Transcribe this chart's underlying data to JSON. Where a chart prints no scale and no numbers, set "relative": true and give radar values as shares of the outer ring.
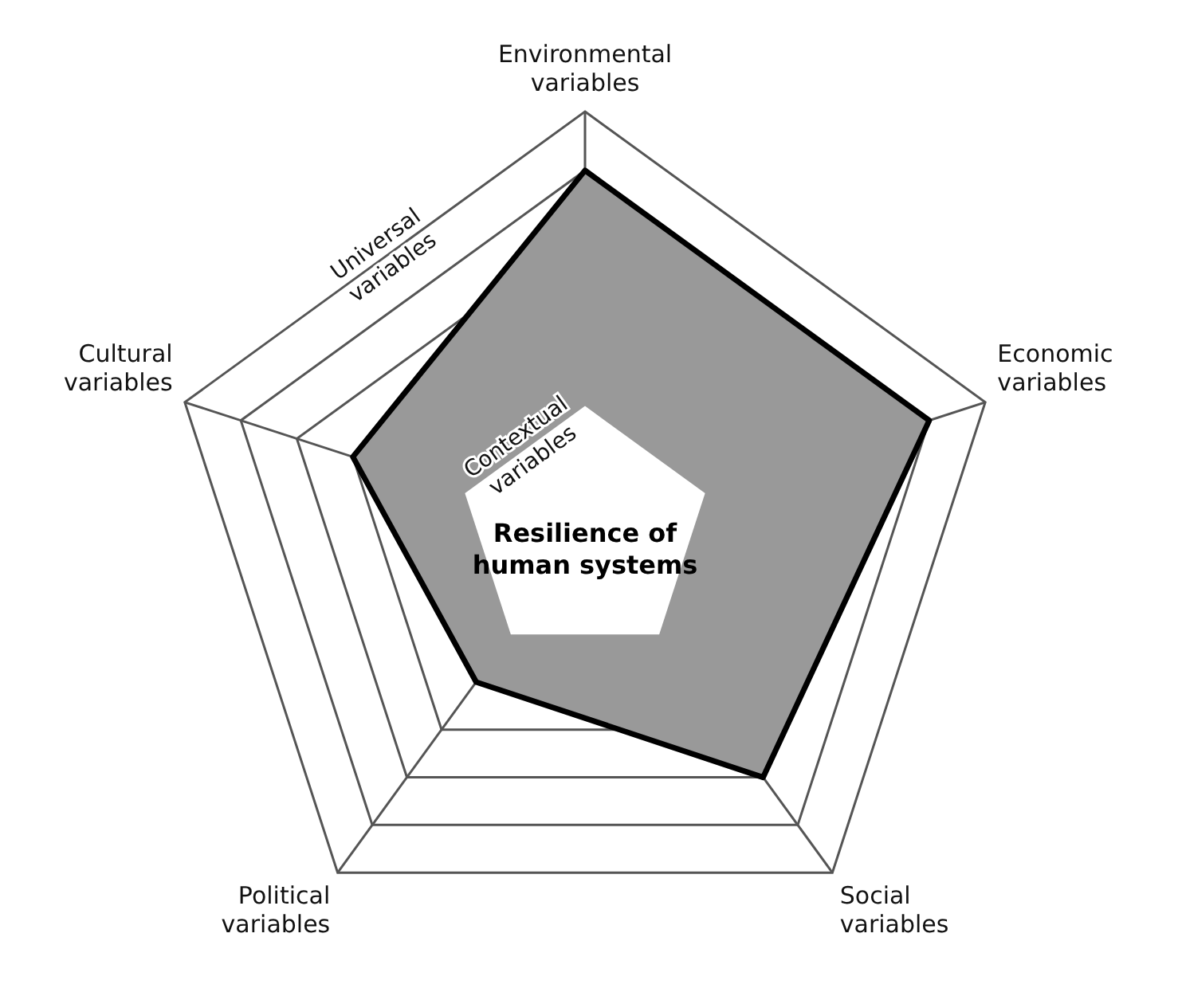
{
  "chart_data": {
    "type": "radar",
    "relative": true,
    "categories": [
      "Environmental variables",
      "Economic variables",
      "Social variables",
      "Political variables",
      "Cultural variables"
    ],
    "series": [
      {
        "color": "#999999",
        "values": [
          0.86,
          0.86,
          0.72,
          0.44,
          0.58
        ]
      }
    ],
    "annotations": [
      "Universal variables",
      "Contextual variables",
      "Resilience of human systems"
    ],
    "legend": false
  }
}
